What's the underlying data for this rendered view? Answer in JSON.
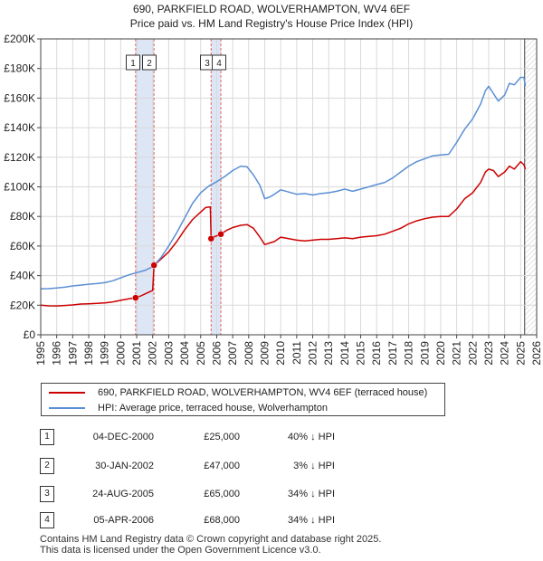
{
  "title_line1": "690, PARKFIELD ROAD, WOLVERHAMPTON, WV4 6EF",
  "title_line2": "Price paid vs. HM Land Registry's House Price Index (HPI)",
  "legend": {
    "property": "690, PARKFIELD ROAD, WOLVERHAMPTON, WV4 6EF (terraced house)",
    "hpi": "HPI: Average price, terraced house, Wolverhampton"
  },
  "colors": {
    "property": "#cc0000",
    "hpi": "#5b8fd4",
    "shade": "#dde6f5",
    "marker_line": "#e06666"
  },
  "transactions": [
    {
      "num": "1",
      "date": "04-DEC-2000",
      "price": "£25,000",
      "hpi": "40% ↓ HPI"
    },
    {
      "num": "2",
      "date": "30-JAN-2002",
      "price": "£47,000",
      "hpi": "3% ↓ HPI"
    },
    {
      "num": "3",
      "date": "24-AUG-2005",
      "price": "£65,000",
      "hpi": "34% ↓ HPI"
    },
    {
      "num": "4",
      "date": "05-APR-2006",
      "price": "£68,000",
      "hpi": "34% ↓ HPI"
    }
  ],
  "footer_line1": "Contains HM Land Registry data © Crown copyright and database right 2025.",
  "footer_line2": "This data is licensed under the Open Government Licence v3.0.",
  "chart_data": {
    "type": "line",
    "xlim": [
      1995,
      2026
    ],
    "ylim": [
      0,
      200000
    ],
    "y_ticks": [
      0,
      20000,
      40000,
      60000,
      80000,
      100000,
      120000,
      140000,
      160000,
      180000,
      200000
    ],
    "y_tick_labels": [
      "£0",
      "£20K",
      "£40K",
      "£60K",
      "£80K",
      "£100K",
      "£120K",
      "£140K",
      "£160K",
      "£180K",
      "£200K"
    ],
    "x_ticks": [
      1995,
      1996,
      1997,
      1998,
      1999,
      2000,
      2001,
      2002,
      2003,
      2004,
      2005,
      2006,
      2007,
      2008,
      2009,
      2010,
      2011,
      2012,
      2013,
      2014,
      2015,
      2016,
      2017,
      2018,
      2019,
      2020,
      2021,
      2022,
      2023,
      2024,
      2025,
      2026
    ],
    "x_tick_labels": [
      "1995",
      "1996",
      "1997",
      "1998",
      "1999",
      "2000",
      "2001",
      "2002",
      "2003",
      "2004",
      "2005",
      "2006",
      "2007",
      "2008",
      "2009",
      "2010",
      "2011",
      "2012",
      "2013",
      "2014",
      "2015",
      "2016",
      "2017",
      "2018",
      "2019",
      "2020",
      "2021",
      "2022",
      "2023",
      "2024",
      "2025",
      "2026"
    ],
    "shaded_ranges": [
      [
        2000.93,
        2002.08
      ],
      [
        2005.65,
        2006.26
      ]
    ],
    "projection_start": 2025.25,
    "series": [
      {
        "name": "690, PARKFIELD ROAD, WOLVERHAMPTON, WV4 6EF (terraced house)",
        "x": [
          1995.0,
          1995.5,
          1996.0,
          1996.5,
          1997.0,
          1997.5,
          1998.0,
          1998.5,
          1999.0,
          1999.5,
          2000.0,
          2000.5,
          2000.93,
          2001.2,
          2001.6,
          2002.0,
          2002.08,
          2002.5,
          2003.0,
          2003.5,
          2004.0,
          2004.5,
          2005.0,
          2005.3,
          2005.6,
          2005.65,
          2005.9,
          2006.26,
          2006.6,
          2007.0,
          2007.5,
          2007.9,
          2008.3,
          2008.7,
          2009.0,
          2009.3,
          2009.6,
          2010.0,
          2010.5,
          2011.0,
          2011.5,
          2012.0,
          2012.5,
          2013.0,
          2013.5,
          2014.0,
          2014.5,
          2015.0,
          2015.5,
          2016.0,
          2016.5,
          2017.0,
          2017.5,
          2018.0,
          2018.5,
          2019.0,
          2019.5,
          2020.0,
          2020.5,
          2021.0,
          2021.5,
          2022.0,
          2022.5,
          2022.8,
          2023.0,
          2023.3,
          2023.6,
          2024.0,
          2024.3,
          2024.6,
          2025.0,
          2025.2,
          2025.3
        ],
        "values": [
          20000,
          19600,
          19500,
          19800,
          20200,
          20800,
          21000,
          21200,
          21600,
          22200,
          23300,
          24300,
          25000,
          26000,
          28000,
          30000,
          47000,
          51000,
          56000,
          63000,
          71000,
          78000,
          83000,
          86000,
          86500,
          65000,
          66500,
          68000,
          70500,
          72500,
          74000,
          74500,
          72000,
          66000,
          61000,
          62000,
          63000,
          66000,
          65000,
          64000,
          63500,
          64000,
          64500,
          64500,
          65000,
          65500,
          65000,
          66000,
          66500,
          67000,
          68000,
          70000,
          72000,
          75000,
          77000,
          78500,
          79500,
          80000,
          80000,
          85000,
          92000,
          96000,
          103000,
          110000,
          112000,
          111000,
          107000,
          110000,
          114000,
          112000,
          117000,
          115000,
          112000
        ]
      },
      {
        "name": "HPI: Average price, terraced house, Wolverhampton",
        "x": [
          1995.0,
          1995.5,
          1996.0,
          1996.5,
          1997.0,
          1997.5,
          1998.0,
          1998.5,
          1999.0,
          1999.5,
          2000.0,
          2000.5,
          2001.0,
          2001.5,
          2002.0,
          2002.5,
          2003.0,
          2003.5,
          2004.0,
          2004.5,
          2005.0,
          2005.5,
          2006.0,
          2006.5,
          2007.0,
          2007.5,
          2007.9,
          2008.3,
          2008.7,
          2009.0,
          2009.3,
          2009.6,
          2010.0,
          2010.5,
          2011.0,
          2011.5,
          2012.0,
          2012.5,
          2013.0,
          2013.5,
          2014.0,
          2014.5,
          2015.0,
          2015.5,
          2016.0,
          2016.5,
          2017.0,
          2017.5,
          2018.0,
          2018.5,
          2019.0,
          2019.5,
          2020.0,
          2020.5,
          2021.0,
          2021.5,
          2022.0,
          2022.5,
          2022.8,
          2023.0,
          2023.3,
          2023.6,
          2024.0,
          2024.3,
          2024.6,
          2025.0,
          2025.2,
          2025.3
        ],
        "values": [
          31000,
          31200,
          31600,
          32200,
          33000,
          33600,
          34200,
          34600,
          35200,
          36500,
          38500,
          40500,
          42000,
          43500,
          46000,
          52000,
          60000,
          69000,
          79000,
          89000,
          96000,
          100500,
          103500,
          107000,
          111000,
          114000,
          113500,
          108000,
          101000,
          92000,
          93000,
          95000,
          98000,
          96500,
          95000,
          95500,
          94500,
          95500,
          96000,
          97000,
          98500,
          97000,
          98500,
          100000,
          101500,
          103000,
          106000,
          110000,
          114000,
          117000,
          119000,
          121000,
          121500,
          122000,
          130000,
          139000,
          146000,
          156000,
          165000,
          168000,
          163000,
          158000,
          162000,
          170000,
          169000,
          174000,
          174000,
          168000
        ]
      }
    ],
    "sale_points": [
      {
        "num": "1",
        "x": 2000.93,
        "value": 25000
      },
      {
        "num": "2",
        "x": 2002.08,
        "value": 47000
      },
      {
        "num": "3",
        "x": 2005.65,
        "value": 65000
      },
      {
        "num": "4",
        "x": 2006.26,
        "value": 68000
      }
    ]
  }
}
